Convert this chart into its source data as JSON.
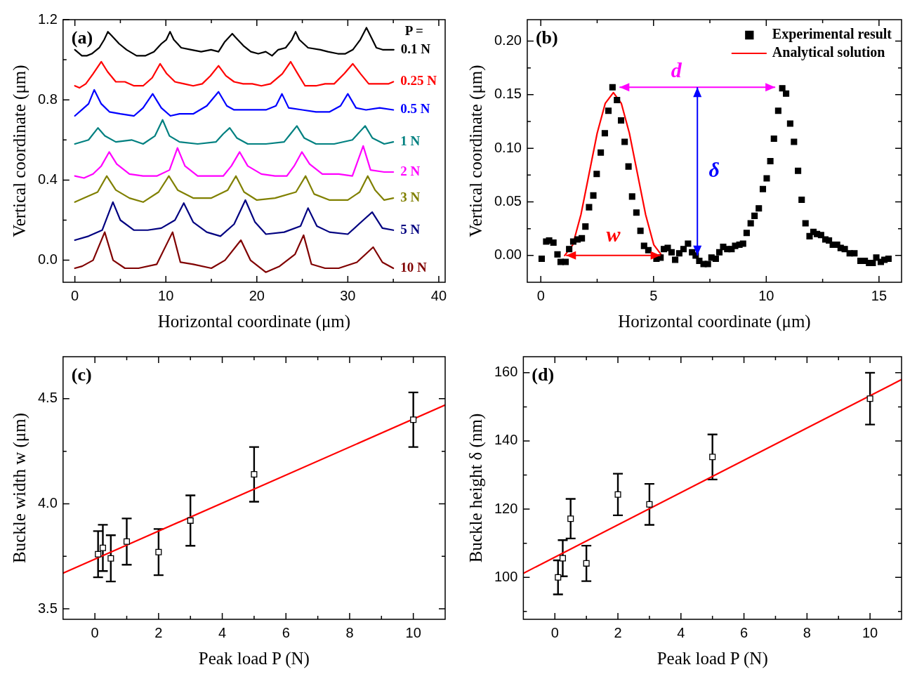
{
  "chart_data": [
    {
      "type": "line",
      "xlabel": "Horizontal coordinate (μm)",
      "ylabel": "Vertical coordinate (μm)",
      "xlim": [
        -1.3,
        40.7
      ],
      "ylim": [
        -0.11,
        1.2
      ],
      "xticks": [
        0,
        {
          "value": 5,
          "label": null
        },
        10,
        {
          "value": 15,
          "label": null
        },
        20,
        {
          "value": 25,
          "label": null
        },
        30,
        {
          "value": 35,
          "label": null
        },
        40
      ],
      "yticks": [
        {
          "value": 0,
          "label": "0.0"
        },
        {
          "value": 0.2,
          "label": null
        },
        0.4,
        {
          "value": 0.6,
          "label": null
        },
        0.8,
        {
          "value": 1,
          "label": null
        },
        1.2
      ],
      "legend": "right",
      "legend_title": "P =",
      "annotations": [
        "(a)"
      ],
      "series": [
        {
          "name": "0.1 N",
          "color": "#000000",
          "x": [
            0,
            0.77,
            1.31,
            1.86,
            2.68,
            3.22,
            3.63,
            4.04,
            4.86,
            5.68,
            6.78,
            7.73,
            8.69,
            9.51,
            10.05,
            10.46,
            10.87,
            11.69,
            12.79,
            13.88,
            14.97,
            15.79,
            16.48,
            17.3,
            17.7,
            18.52,
            19.34,
            20.16,
            20.98,
            21.67,
            22.35,
            23.17,
            23.85,
            24.26,
            24.67,
            25.63,
            26.99,
            27.81,
            28.91,
            29.73,
            30.55,
            31.37,
            32.05,
            32.6,
            33.14,
            33.83,
            35.05
          ],
          "values": [
            1.05,
            1.02,
            1.02,
            1.03,
            1.06,
            1.1,
            1.14,
            1.12,
            1.08,
            1.05,
            1.02,
            1.02,
            1.04,
            1.08,
            1.1,
            1.14,
            1.1,
            1.06,
            1.05,
            1.04,
            1.05,
            1.04,
            1.09,
            1.13,
            1.11,
            1.07,
            1.04,
            1.03,
            1.04,
            1.02,
            1.05,
            1.06,
            1.1,
            1.14,
            1.1,
            1.06,
            1.05,
            1.04,
            1.03,
            1.03,
            1.05,
            1.1,
            1.16,
            1.11,
            1.06,
            1.05,
            1.05
          ]
        },
        {
          "name": "0.25 N",
          "color": "#ff0000",
          "x": [
            0,
            0.5,
            1.2,
            2,
            2.9,
            3.6,
            4.5,
            5.5,
            6.5,
            7.5,
            8.5,
            9.37,
            10.1,
            11,
            12,
            13,
            14,
            14.9,
            15.79,
            16.6,
            17.5,
            18.5,
            19.5,
            20.5,
            21.5,
            22.8,
            23.72,
            24.5,
            25.3,
            26.5,
            27.5,
            28.5,
            29.6,
            30.55,
            31.4,
            32.3,
            33.5,
            34.5,
            35
          ],
          "values": [
            0.87,
            0.86,
            0.88,
            0.93,
            0.99,
            0.94,
            0.89,
            0.89,
            0.87,
            0.87,
            0.91,
            0.98,
            0.93,
            0.89,
            0.88,
            0.87,
            0.88,
            0.92,
            0.97,
            0.92,
            0.89,
            0.88,
            0.88,
            0.87,
            0.88,
            0.93,
            0.99,
            0.93,
            0.87,
            0.87,
            0.88,
            0.88,
            0.93,
            0.98,
            0.93,
            0.88,
            0.88,
            0.88,
            0.89
          ]
        },
        {
          "name": "0.5 N",
          "color": "#0000ff",
          "x": [
            0,
            1,
            1.5,
            2.13,
            2.9,
            3.8,
            5,
            6.5,
            7.5,
            8.55,
            9.5,
            10.5,
            11.5,
            13,
            14.5,
            15.79,
            16.7,
            17.5,
            19,
            21,
            22.1,
            22.76,
            23.5,
            25,
            26.5,
            28,
            29.2,
            30,
            30.9,
            32,
            33.5,
            35
          ],
          "values": [
            0.72,
            0.76,
            0.78,
            0.85,
            0.78,
            0.74,
            0.73,
            0.72,
            0.76,
            0.83,
            0.76,
            0.72,
            0.73,
            0.73,
            0.77,
            0.84,
            0.77,
            0.75,
            0.75,
            0.75,
            0.77,
            0.83,
            0.76,
            0.75,
            0.74,
            0.74,
            0.77,
            0.83,
            0.76,
            0.75,
            0.76,
            0.75
          ]
        },
        {
          "name": "1 N",
          "color": "#008080",
          "x": [
            0,
            1.5,
            2.54,
            3.3,
            4.5,
            6.23,
            7.5,
            8.8,
            9.64,
            10.4,
            11.5,
            13.5,
            15.5,
            16.3,
            17.02,
            17.8,
            19,
            21,
            23,
            23.7,
            24.4,
            25.2,
            26.5,
            28.5,
            30.5,
            31.3,
            31.91,
            32.7,
            34,
            35
          ],
          "values": [
            0.58,
            0.6,
            0.66,
            0.62,
            0.59,
            0.6,
            0.58,
            0.62,
            0.7,
            0.62,
            0.59,
            0.58,
            0.59,
            0.63,
            0.66,
            0.61,
            0.58,
            0.58,
            0.59,
            0.63,
            0.67,
            0.61,
            0.58,
            0.58,
            0.6,
            0.64,
            0.67,
            0.61,
            0.58,
            0.59
          ]
        },
        {
          "name": "2 N",
          "color": "#ff00ff",
          "x": [
            0,
            1,
            2,
            2.9,
            3.77,
            4.6,
            6,
            7.5,
            9,
            10.4,
            11.28,
            12.1,
            13.5,
            15,
            16.3,
            17.2,
            18.11,
            19,
            20.5,
            22,
            23.3,
            24.1,
            24.95,
            25.8,
            27.2,
            29,
            30.5,
            31.69,
            32.5,
            34,
            35
          ],
          "values": [
            0.42,
            0.41,
            0.43,
            0.47,
            0.54,
            0.48,
            0.43,
            0.42,
            0.42,
            0.45,
            0.56,
            0.47,
            0.42,
            0.42,
            0.42,
            0.47,
            0.54,
            0.47,
            0.43,
            0.42,
            0.42,
            0.47,
            0.54,
            0.48,
            0.43,
            0.43,
            0.42,
            0.57,
            0.45,
            0.44,
            0.44
          ]
        },
        {
          "name": "3 N",
          "color": "#808000",
          "x": [
            0,
            1,
            2.5,
            3.5,
            4.5,
            6,
            7.5,
            9.2,
            10.33,
            11.3,
            13,
            15,
            16.8,
            17.7,
            18.6,
            20,
            22,
            24.3,
            25.36,
            26.3,
            28,
            30,
            31.3,
            32.19,
            33,
            34,
            35
          ],
          "values": [
            0.29,
            0.31,
            0.34,
            0.42,
            0.35,
            0.31,
            0.29,
            0.34,
            0.42,
            0.35,
            0.31,
            0.31,
            0.35,
            0.42,
            0.34,
            0.3,
            0.31,
            0.34,
            0.42,
            0.33,
            0.3,
            0.3,
            0.34,
            0.42,
            0.35,
            0.3,
            0.31
          ]
        },
        {
          "name": "5 N",
          "color": "#000080",
          "x": [
            0,
            1.5,
            3,
            4.18,
            5,
            6.5,
            8,
            9.5,
            11,
            11.97,
            13,
            14.5,
            16,
            17.5,
            18.74,
            19.8,
            21,
            23,
            24.8,
            25.63,
            26.6,
            28,
            30,
            31.7,
            32.68,
            33.8,
            35
          ],
          "values": [
            0.1,
            0.12,
            0.15,
            0.29,
            0.2,
            0.15,
            0.15,
            0.16,
            0.2,
            0.285,
            0.19,
            0.14,
            0.12,
            0.18,
            0.3,
            0.19,
            0.13,
            0.14,
            0.17,
            0.26,
            0.17,
            0.14,
            0.13,
            0.2,
            0.24,
            0.16,
            0.15
          ]
        },
        {
          "name": "10 N",
          "color": "#800000",
          "x": [
            0,
            0.8,
            2,
            3.28,
            4.2,
            5.5,
            7,
            9,
            10.74,
            11.6,
            13,
            15,
            16.5,
            18.25,
            19.3,
            20.98,
            22.5,
            24.2,
            25.14,
            26,
            27.5,
            29,
            31,
            32.79,
            33.8,
            35
          ],
          "values": [
            -0.04,
            -0.03,
            0,
            0.14,
            0,
            -0.04,
            -0.04,
            -0.02,
            0.14,
            -0.01,
            -0.02,
            -0.04,
            0,
            0.1,
            0,
            -0.06,
            -0.03,
            0.03,
            0.125,
            -0.02,
            -0.04,
            -0.04,
            -0.01,
            0.065,
            -0.01,
            -0.04
          ]
        }
      ]
    },
    {
      "type": "scatter",
      "xlabel": "Horizontal coordinate (μm)",
      "ylabel": "Vertical coordinate (μm)",
      "xlim": [
        -0.6,
        16
      ],
      "ylim": [
        -0.025,
        0.22
      ],
      "xticks": [
        0,
        {
          "value": 2.5,
          "label": null
        },
        5,
        {
          "value": 7.5,
          "label": null
        },
        10,
        {
          "value": 12.5,
          "label": null
        },
        15
      ],
      "yticks": [
        {
          "value": 0,
          "label": "0.00"
        },
        {
          "value": 0.025,
          "label": null
        },
        {
          "value": 0.05,
          "label": "0.05"
        },
        {
          "value": 0.075,
          "label": null
        },
        {
          "value": 0.1,
          "label": "0.10"
        },
        {
          "value": 0.125,
          "label": null
        },
        {
          "value": 0.15,
          "label": "0.15"
        },
        {
          "value": 0.175,
          "label": null
        },
        {
          "value": 0.2,
          "label": "0.20"
        }
      ],
      "marker": "square",
      "legend": "top right",
      "annotations": [
        "(b)",
        "w",
        "d",
        "δ"
      ],
      "series": [
        {
          "name": "Experimental result",
          "color": "#000000",
          "x": [
            0.04,
            0.24,
            0.37,
            0.56,
            0.74,
            0.88,
            1.1,
            1.26,
            1.44,
            1.63,
            1.82,
            1.98,
            2.14,
            2.33,
            2.48,
            2.66,
            2.84,
            3,
            3.18,
            3.38,
            3.56,
            3.72,
            3.89,
            4.05,
            4.24,
            4.42,
            4.58,
            4.77,
            5.13,
            5.31,
            5.46,
            5.63,
            5.8,
            5.96,
            6.14,
            6.33,
            6.53,
            6.71,
            6.87,
            7.03,
            7.22,
            7.41,
            7.57,
            7.76,
            7.92,
            8.09,
            8.27,
            8.46,
            8.62,
            8.81,
            8.97,
            9.13,
            9.31,
            9.48,
            9.67,
            9.85,
            10.02,
            10.18,
            10.34,
            10.53,
            10.71,
            10.88,
            11.06,
            11.23,
            11.41,
            11.57,
            11.74,
            11.92,
            12.09,
            12.25,
            12.43,
            12.62,
            12.78,
            12.95,
            13.14,
            13.3,
            13.48,
            13.7,
            13.91,
            14.18,
            14.37,
            14.56,
            14.72,
            14.88,
            15.08,
            15.24,
            15.42
          ],
          "values": [
            -0.003,
            0.013,
            0.014,
            0.012,
            0.001,
            -0.006,
            -0.006,
            0.006,
            0.013,
            0.015,
            0.016,
            0.027,
            0.045,
            0.056,
            0.076,
            0.096,
            0.114,
            0.135,
            0.157,
            0.145,
            0.126,
            0.106,
            0.083,
            0.055,
            0.04,
            0.023,
            0.009,
            0.005,
            -0.003,
            -0.002,
            0.006,
            0.007,
            0.003,
            -0.004,
            0.002,
            0.006,
            0.011,
            0.003,
            0,
            -0.005,
            -0.008,
            -0.008,
            -0.002,
            -0.003,
            0.003,
            0.008,
            0.006,
            0.006,
            0.009,
            0.01,
            0.011,
            0.021,
            0.03,
            0.037,
            0.044,
            0.062,
            0.072,
            0.088,
            0.109,
            0.135,
            0.156,
            0.151,
            0.123,
            0.106,
            0.079,
            0.052,
            0.03,
            0.018,
            0.022,
            0.02,
            0.019,
            0.015,
            0.014,
            0.01,
            0.01,
            0.007,
            0.006,
            0.002,
            0.002,
            -0.005,
            -0.005,
            -0.007,
            -0.007,
            -0.002,
            -0.006,
            -0.004,
            -0.003
          ]
        },
        {
          "name": "Analytical solution",
          "type": "line",
          "marker": "none",
          "color": "#ff0000",
          "x": [
            1.06,
            1.42,
            1.78,
            2.14,
            2.5,
            2.86,
            3.22,
            3.57,
            3.93,
            4.29,
            4.65,
            5.01,
            5.37
          ],
          "values": [
            0,
            0.01,
            0.038,
            0.076,
            0.114,
            0.142,
            0.152,
            0.142,
            0.114,
            0.076,
            0.038,
            0.01,
            0
          ]
        }
      ]
    },
    {
      "type": "scatter",
      "xlabel": "Peak load P (N)",
      "ylabel": "Buckle width w (μm)",
      "xlim": [
        -1,
        11
      ],
      "ylim": [
        3.45,
        4.7
      ],
      "xticks": [
        0,
        {
          "value": 1,
          "label": null
        },
        2,
        {
          "value": 3,
          "label": null
        },
        4,
        {
          "value": 5,
          "label": null
        },
        6,
        {
          "value": 7,
          "label": null
        },
        8,
        {
          "value": 9,
          "label": null
        },
        10
      ],
      "yticks": [
        3.5,
        {
          "value": 3.75,
          "label": null
        },
        {
          "value": 4,
          "label": "4.0"
        },
        {
          "value": 4.25,
          "label": null
        },
        4.5
      ],
      "marker": "square",
      "legend": false,
      "annotations": [
        "(c)"
      ],
      "series": [
        {
          "color": "#000000",
          "x": [
            0.1,
            0.25,
            0.5,
            1,
            2,
            3,
            5,
            10
          ],
          "values": [
            3.76,
            3.79,
            3.74,
            3.82,
            3.77,
            3.92,
            4.14,
            4.4
          ],
          "errors": [
            0.11,
            0.11,
            0.11,
            0.11,
            0.11,
            0.12,
            0.13,
            0.13
          ]
        },
        {
          "type": "line",
          "marker": "none",
          "color": "#ff0000",
          "x": [
            -1,
            11
          ],
          "values": [
            3.67,
            4.47
          ]
        }
      ]
    },
    {
      "type": "scatter",
      "xlabel": "Peak load P (N)",
      "ylabel": "Buckle height δ (nm)",
      "xlim": [
        -1,
        11
      ],
      "ylim": [
        87.7,
        164.7
      ],
      "xticks": [
        0,
        {
          "value": 1,
          "label": null
        },
        2,
        {
          "value": 3,
          "label": null
        },
        4,
        {
          "value": 5,
          "label": null
        },
        6,
        {
          "value": 7,
          "label": null
        },
        8,
        {
          "value": 9,
          "label": null
        },
        10
      ],
      "yticks": [
        {
          "value": 90,
          "label": null
        },
        100,
        {
          "value": 110,
          "label": null
        },
        120,
        {
          "value": 130,
          "label": null
        },
        140,
        {
          "value": 150,
          "label": null
        },
        160
      ],
      "marker": "square",
      "legend": false,
      "annotations": [
        "(d)"
      ],
      "series": [
        {
          "color": "#000000",
          "x": [
            0.1,
            0.25,
            0.5,
            1,
            2,
            3,
            5,
            10
          ],
          "values": [
            100,
            105.6,
            117.2,
            104.1,
            124.3,
            121.4,
            135.3,
            152.4
          ],
          "errors": [
            5,
            5.3,
            5.8,
            5.2,
            6.1,
            6,
            6.6,
            7.6
          ]
        },
        {
          "type": "line",
          "marker": "none",
          "color": "#ff0000",
          "x": [
            -1,
            11
          ],
          "values": [
            101.2,
            158
          ]
        }
      ]
    }
  ]
}
